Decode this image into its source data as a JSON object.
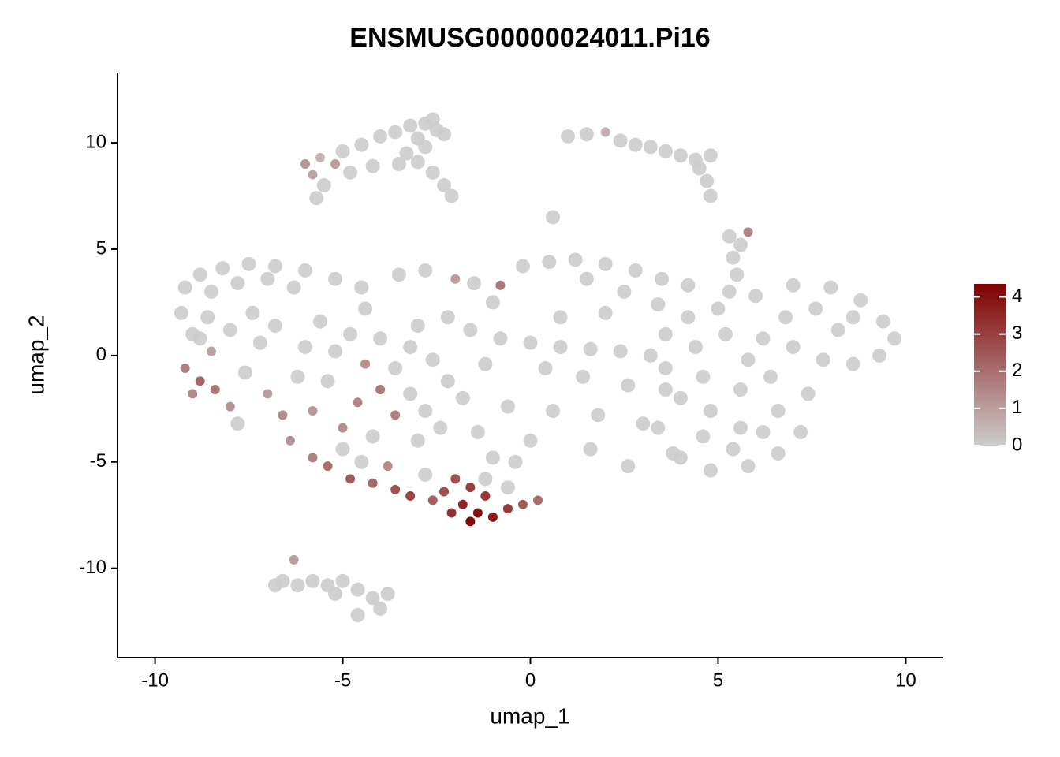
{
  "chart_data": {
    "type": "scatter",
    "title": "ENSMUSG00000024011.Pi16",
    "x_label": "umap_1",
    "y_label": "umap_2",
    "xlim": [
      -11,
      11
    ],
    "ylim": [
      -14.2,
      13.3
    ],
    "xticks": [
      -10,
      -5,
      0,
      5,
      10
    ],
    "yticks": [
      -10,
      -5,
      0,
      5,
      10
    ],
    "grid": false,
    "x": [
      -3.2,
      -2.8,
      -2.5,
      -2.3,
      -3.6,
      -4.0,
      -2.6,
      -3.0,
      -4.5,
      -5.0,
      -5.6,
      -6.0,
      -5.8,
      -5.5,
      -5.7,
      -4.8,
      -4.2,
      -3.5,
      -3.0,
      -2.6,
      -2.3,
      -2.8,
      -3.3,
      -5.2,
      -2.1,
      1.0,
      1.5,
      2.0,
      2.4,
      2.8,
      3.2,
      3.6,
      4.0,
      4.4,
      4.8,
      4.5,
      4.7,
      4.8,
      0.6,
      5.3,
      5.6,
      5.4,
      5.5,
      5.3,
      5.8,
      -9.2,
      -8.8,
      -8.2,
      -7.5,
      -6.8,
      -6.0,
      -5.2,
      -4.5,
      -8.5,
      -7.8,
      -7.0,
      -6.3,
      -3.5,
      -2.8,
      -2.0,
      -1.5,
      -0.8,
      -0.2,
      0.5,
      1.2,
      2.0,
      2.8,
      3.5,
      4.2,
      1.5,
      -1.0,
      2.5,
      -9.3,
      -9.0,
      -8.6,
      -8.0,
      -7.4,
      -8.5,
      -9.2,
      -8.8,
      -9.0,
      -8.4,
      -8.0,
      -7.6,
      -7.2,
      -7.0,
      -6.6,
      -6.2,
      -7.8,
      -6.8,
      -8.8,
      -5.6,
      -4.8,
      -4.0,
      -3.2,
      -2.6,
      -5.2,
      -4.4,
      -3.6,
      -4.0,
      -3.2,
      -4.6,
      -5.4,
      -5.8,
      -3.6,
      -2.8,
      -2.2,
      -5.0,
      -4.2,
      -3.0,
      -2.4,
      -6.0,
      -3.0,
      -2.2,
      -4.4,
      -6.4,
      -5.8,
      -5.4,
      -4.8,
      -4.2,
      -3.6,
      -3.2,
      -4.5,
      -3.8,
      -5.0,
      -2.8,
      -2.6,
      -2.0,
      -1.6,
      -1.2,
      -1.8,
      -1.4,
      -1.0,
      -1.6,
      -2.1,
      -0.6,
      -0.2,
      -1.2,
      -0.6,
      0.2,
      -2.3,
      -1.6,
      -0.8,
      0,
      0.8,
      1.6,
      2.4,
      3.2,
      -1.2,
      0.4,
      1.4,
      2.6,
      3.6,
      -1.8,
      -0.6,
      0.6,
      1.8,
      3.0,
      -1.4,
      0.0,
      1.6,
      2.6,
      3.8,
      -0.4,
      0.8,
      2.0,
      -1.0,
      3.4,
      4.2,
      5.0,
      6.0,
      7.0,
      8.0,
      8.8,
      9.4,
      9.7,
      9.3,
      8.6,
      7.8,
      7.0,
      6.2,
      5.2,
      4.4,
      3.6,
      4.0,
      4.8,
      5.6,
      6.4,
      7.4,
      6.6,
      5.6,
      4.6,
      4.0,
      4.8,
      5.8,
      6.6,
      7.2,
      3.4,
      8.2,
      6.8,
      5.8,
      4.6,
      7.6,
      3.6,
      5.4,
      8.6,
      6.2,
      -6.6,
      -6.2,
      -5.8,
      -5.4,
      -5.0,
      -6.3,
      -4.6,
      -4.2,
      -3.8,
      -4.0,
      -4.6,
      -5.2,
      -6.8
    ],
    "y": [
      10.8,
      10.9,
      10.6,
      10.4,
      10.5,
      10.3,
      11.1,
      10.2,
      9.9,
      9.6,
      9.3,
      9.0,
      8.5,
      8.0,
      7.4,
      8.6,
      8.9,
      9.0,
      9.1,
      8.6,
      8.0,
      9.8,
      9.5,
      9.0,
      7.5,
      10.3,
      10.4,
      10.5,
      10.1,
      9.9,
      9.8,
      9.6,
      9.4,
      9.2,
      9.4,
      8.8,
      8.2,
      7.5,
      6.5,
      5.6,
      5.2,
      4.6,
      3.8,
      3.0,
      5.8,
      3.2,
      3.8,
      4.1,
      4.3,
      4.2,
      4.0,
      3.6,
      3.2,
      3.0,
      3.4,
      3.6,
      3.2,
      3.8,
      4.0,
      3.6,
      3.4,
      3.3,
      4.2,
      4.4,
      4.5,
      4.3,
      4.0,
      3.6,
      3.3,
      3.6,
      2.5,
      3.0,
      2.0,
      1.0,
      1.8,
      1.2,
      2.0,
      0.2,
      -0.6,
      -1.2,
      -1.8,
      -1.6,
      -2.4,
      -0.8,
      0.6,
      -1.8,
      -2.8,
      -1.0,
      -3.2,
      1.4,
      0.8,
      1.6,
      1.0,
      0.8,
      0.4,
      -0.2,
      0.2,
      -0.4,
      -0.6,
      -1.6,
      -1.8,
      -2.2,
      -1.2,
      -2.6,
      -2.8,
      -2.6,
      -1.2,
      -3.4,
      -3.8,
      -4.0,
      -3.4,
      0.4,
      1.4,
      1.8,
      2.2,
      -4.0,
      -4.8,
      -5.2,
      -5.8,
      -6.0,
      -6.3,
      -6.6,
      -5.0,
      -5.2,
      -4.4,
      -5.6,
      -6.8,
      -5.8,
      -6.2,
      -6.6,
      -7.0,
      -7.4,
      -7.6,
      -7.8,
      -7.4,
      -7.2,
      -7.0,
      -5.8,
      -6.2,
      -6.8,
      -6.4,
      1.2,
      0.8,
      0.6,
      0.4,
      0.3,
      0.2,
      0,
      -0.4,
      -0.6,
      -1.0,
      -1.4,
      -1.6,
      -2.0,
      -2.4,
      -2.6,
      -2.8,
      -3.2,
      -3.6,
      -4.0,
      -4.4,
      -5.2,
      -4.6,
      -5.0,
      1.8,
      2.0,
      -4.8,
      2.4,
      1.8,
      2.2,
      2.8,
      3.3,
      3.2,
      2.6,
      1.6,
      0.8,
      0.0,
      -0.4,
      -0.2,
      0.4,
      0.8,
      1.0,
      0.4,
      -0.6,
      -2.0,
      -2.6,
      -1.6,
      -1.0,
      -1.8,
      -2.6,
      -3.4,
      -3.8,
      -4.8,
      -5.4,
      -5.2,
      -4.6,
      -3.6,
      -3.4,
      1.2,
      1.8,
      -0.2,
      -1.0,
      2.2,
      1.0,
      -4.4,
      1.8,
      -3.6,
      -10.6,
      -10.8,
      -10.6,
      -10.8,
      -10.6,
      -9.6,
      -11.0,
      -11.4,
      -11.2,
      -11.9,
      -12.2,
      -11.2,
      -10.8
    ],
    "expression": [
      0,
      0,
      0,
      0,
      0,
      0,
      0,
      0,
      0,
      0,
      0.5,
      1.2,
      0.8,
      0,
      0,
      0,
      0,
      0,
      0,
      0,
      0,
      0,
      0,
      1.0,
      0,
      0,
      0,
      0.6,
      0,
      0,
      0,
      0,
      0,
      0,
      0,
      0,
      0,
      0,
      0,
      0,
      0,
      0,
      0,
      0,
      1.5,
      0,
      0,
      0,
      0,
      0,
      0,
      0,
      0,
      0,
      0,
      0,
      0,
      0,
      0,
      1.0,
      0,
      1.8,
      0,
      0,
      0,
      0,
      0,
      0,
      0,
      0,
      0,
      0,
      0,
      0,
      0,
      0,
      0,
      0.9,
      1.6,
      2.2,
      1.4,
      1.8,
      1.2,
      0,
      0,
      1.0,
      1.4,
      0,
      0,
      0,
      0,
      0,
      0,
      0,
      0,
      0,
      0,
      1.3,
      0,
      1.8,
      0,
      1.5,
      0,
      1.1,
      1.6,
      0,
      0,
      1.3,
      0,
      0,
      0,
      0,
      0,
      0,
      0,
      1.2,
      1.6,
      2.0,
      2.4,
      2.1,
      2.6,
      2.9,
      0,
      1.4,
      0,
      0,
      2.3,
      2.6,
      3.0,
      3.2,
      3.6,
      4.0,
      3.8,
      4.2,
      3.3,
      3.1,
      2.4,
      0,
      0,
      2.0,
      2.7,
      0,
      0,
      0,
      0,
      0,
      0,
      0,
      0,
      0,
      0,
      0,
      0,
      0,
      0,
      0,
      0,
      0,
      0,
      0,
      0,
      0,
      0,
      0,
      0,
      0,
      0,
      0,
      0,
      0,
      0,
      0,
      0,
      0,
      0,
      0,
      0,
      0,
      0,
      0,
      0,
      0,
      0,
      0,
      0,
      0,
      0,
      0,
      0,
      0,
      0,
      0,
      0,
      0,
      0,
      0,
      0,
      0,
      0,
      0,
      0,
      0,
      0,
      0,
      0,
      0,
      0,
      0,
      0,
      0,
      0,
      0,
      1.0,
      0,
      0,
      0,
      0,
      0,
      0,
      0
    ],
    "color_scale": {
      "low": "#cccccc",
      "high": "#800000",
      "lim": [
        0,
        4.35
      ],
      "ticks": [
        0,
        1,
        2,
        3,
        4
      ]
    }
  }
}
